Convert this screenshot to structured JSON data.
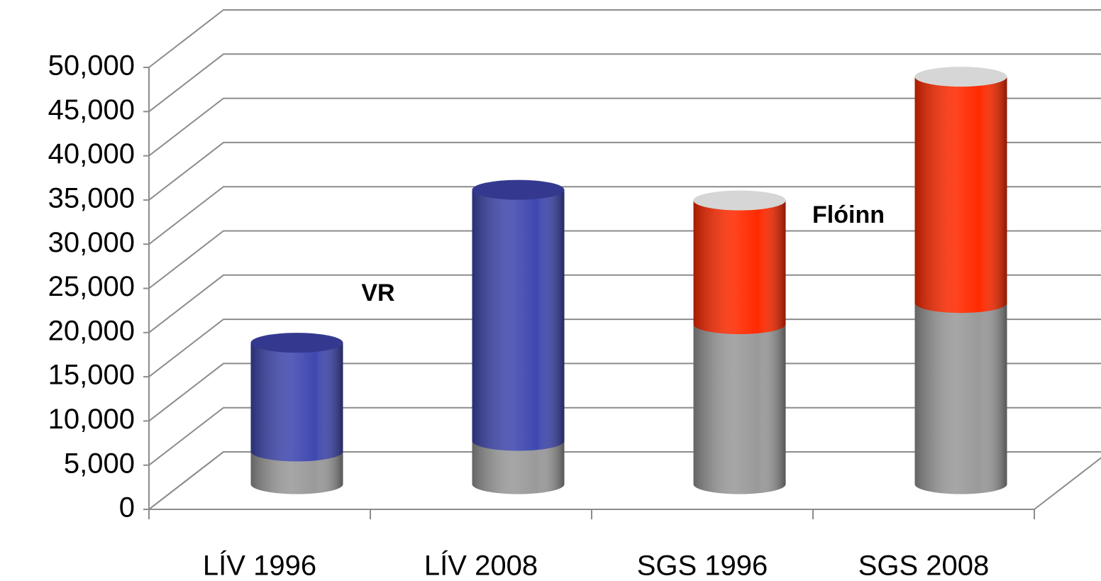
{
  "chart_data": {
    "type": "cylinder3d_stacked",
    "categories": [
      "LÍV 1996",
      "LÍV 2008",
      "SGS 1996",
      "SGS 2008"
    ],
    "series": [
      {
        "colors": [
          "#9a9a9a",
          "#9a9a9a",
          "#9a9a9a",
          "#9a9a9a"
        ],
        "values": [
          3700,
          4900,
          18100,
          20500
        ]
      },
      {
        "colors": [
          "#3f48b0",
          "#3f48b0",
          "#ff2a00",
          "#ff2a00"
        ],
        "top_colors": [
          "#34398f",
          "#34398f",
          "#d6d6d6",
          "#d6d6d6"
        ],
        "values": [
          12300,
          28400,
          14000,
          25600
        ]
      }
    ],
    "annotations": [
      "VR",
      "Flóinn"
    ],
    "ylim": [
      0,
      50000
    ],
    "yticks": [
      0,
      {
        "value": 5000,
        "label": "5,000"
      },
      {
        "value": 10000,
        "label": "10,000"
      },
      {
        "value": 15000,
        "label": "15,000"
      },
      {
        "value": 20000,
        "label": "20,000"
      },
      {
        "value": 25000,
        "label": "25,000"
      },
      {
        "value": 30000,
        "label": "30,000"
      },
      {
        "value": 35000,
        "label": "35,000"
      },
      {
        "value": 40000,
        "label": "40,000"
      },
      {
        "value": 45000,
        "label": "45,000"
      },
      {
        "value": 50000,
        "label": "50,000"
      }
    ],
    "grid": true
  }
}
